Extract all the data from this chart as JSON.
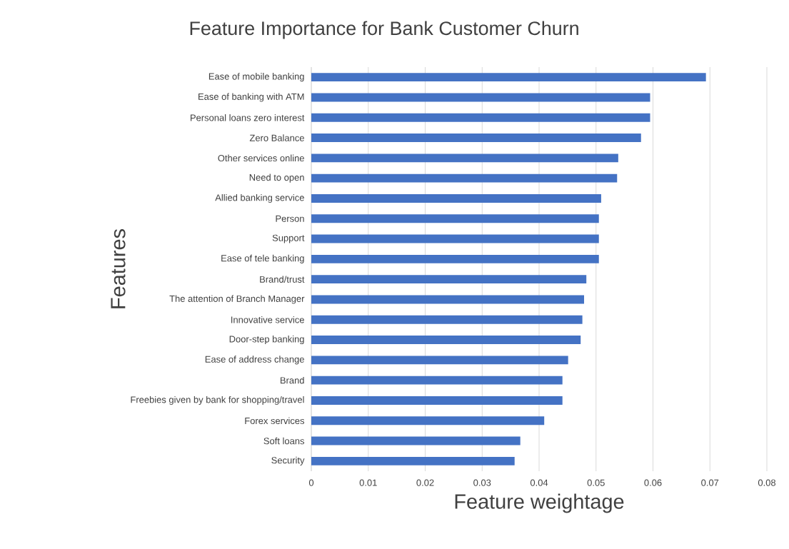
{
  "chart_data": {
    "type": "bar",
    "orientation": "horizontal",
    "title": "Feature Importance for Bank Customer Churn",
    "xlabel": "Feature weightage",
    "ylabel": "Features",
    "categories": [
      "Ease of mobile banking",
      "Ease of banking with ATM",
      "Personal loans zero interest",
      "Zero Balance",
      "Other services online",
      "Need to open",
      "Allied banking service",
      "Person",
      "Support",
      "Ease of tele banking",
      "Brand/trust",
      "The attention of Branch Manager",
      "Innovative service",
      "Door-step banking",
      "Ease of address change",
      "Brand",
      "Freebies given by bank for shopping/travel",
      "Forex services",
      "Soft loans",
      "Security"
    ],
    "values": [
      0.0693,
      0.0595,
      0.0595,
      0.0579,
      0.0539,
      0.0537,
      0.0509,
      0.0505,
      0.0505,
      0.0505,
      0.0483,
      0.0479,
      0.0476,
      0.0473,
      0.0451,
      0.0441,
      0.0441,
      0.0409,
      0.0367,
      0.0357
    ],
    "color": "#4472c4",
    "xlim": [
      0,
      0.08
    ],
    "xticks": [
      0,
      0.01,
      0.02,
      0.03,
      0.04,
      0.05,
      0.06,
      0.07,
      0.08
    ],
    "grid": "x"
  }
}
